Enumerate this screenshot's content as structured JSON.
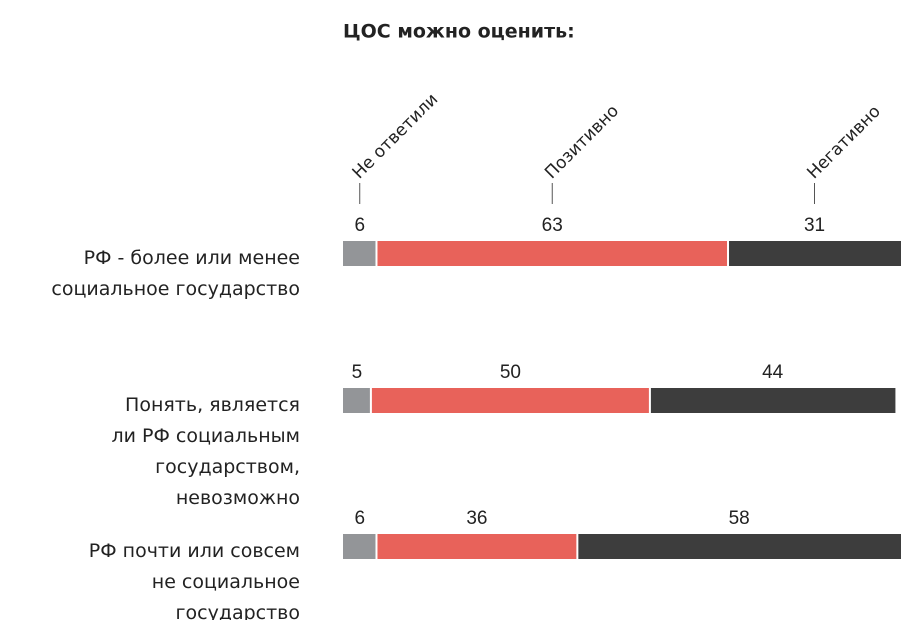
{
  "chart_data": {
    "type": "stacked-bar",
    "title": "ЦОС можно оценить:",
    "categories": [
      [
        "РФ - более или менее",
        "социальное государство"
      ],
      [
        "Понять, является",
        "ли РФ социальным",
        "государством,",
        "невозможно"
      ],
      [
        "РФ почти или совсем",
        "не социальное",
        "государство"
      ]
    ],
    "series": [
      {
        "name": "Не ответили",
        "color": "#939598",
        "values": [
          6,
          5,
          6
        ]
      },
      {
        "name": "Позитивно",
        "color": "#e8625a",
        "values": [
          63,
          50,
          36
        ]
      },
      {
        "name": "Негативно",
        "color": "#3d3d3d",
        "values": [
          31,
          44,
          58
        ]
      }
    ],
    "xlim": [
      0,
      100
    ]
  }
}
